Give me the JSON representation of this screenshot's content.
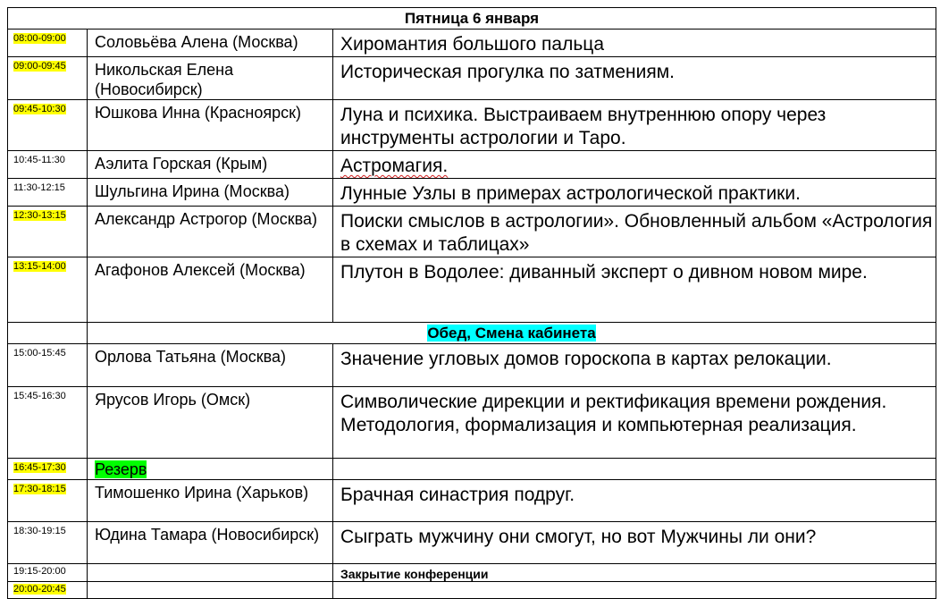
{
  "title": "Пятница 6 января",
  "colors": {
    "time_highlight": "#ffff00",
    "reserve_highlight": "#00ff00",
    "lunch_highlight": "#00ffff"
  },
  "rows": [
    {
      "time": "08:00-09:00",
      "speaker": "Соловьёва Алена (Москва)",
      "topic": "Хиромантия большого пальца"
    },
    {
      "time": "09:00-09:45",
      "speaker": "Никольская Елена (Новосибирск)",
      "topic": "Историческая прогулка по затмениям."
    },
    {
      "time": "09:45-10:30",
      "speaker": "Юшкова Инна (Красноярск)",
      "topic": "Луна и психика. Выстраиваем внутреннюю опору через инструменты астрологии и Таро."
    },
    {
      "time": "10:45-11:30",
      "speaker": "Аэлита Горская (Крым)",
      "topic": "Астромагия."
    },
    {
      "time": "11:30-12:15",
      "speaker": "Шульгина Ирина (Москва)",
      "topic": "Лунные Узлы в примерах астрологической практики."
    },
    {
      "time": "12:30-13:15",
      "speaker": "Александр Астрогор (Москва)",
      "topic": "Поиски смыслов в астрологии». Обновленный альбом «Астрология в схемах и таблицах»"
    },
    {
      "time": "13:15-14:00",
      "speaker": "Агафонов Алексей (Москва)",
      "topic": "Плутон в Водолее: диванный эксперт о дивном новом мире."
    },
    {
      "lunch": "Обед, Смена кабинета"
    },
    {
      "time": "15:00-15:45",
      "speaker": "Орлова Татьяна (Москва)",
      "topic": "Значение угловых домов гороскопа в картах релокации."
    },
    {
      "time": "15:45-16:30",
      "speaker": "Ярусов Игорь (Омск)",
      "topic": "Символические дирекции и ректификация времени рождения. Методология, формализация и компьютерная реализация."
    },
    {
      "time": "16:45-17:30",
      "speaker": "Резерв",
      "topic": ""
    },
    {
      "time": "17:30-18:15",
      "speaker": "Тимошенко Ирина (Харьков)",
      "topic": "Брачная синастрия подруг."
    },
    {
      "time": "18:30-19:15",
      "speaker": "Юдина Тамара (Новосибирск)",
      "topic": "Сыграть мужчину они смогут, но вот Мужчины ли они?"
    },
    {
      "time": "19:15-20:00",
      "speaker": "",
      "topic": "Закрытие конференции"
    },
    {
      "time": "20:00-20:45",
      "speaker": "",
      "topic": ""
    }
  ]
}
